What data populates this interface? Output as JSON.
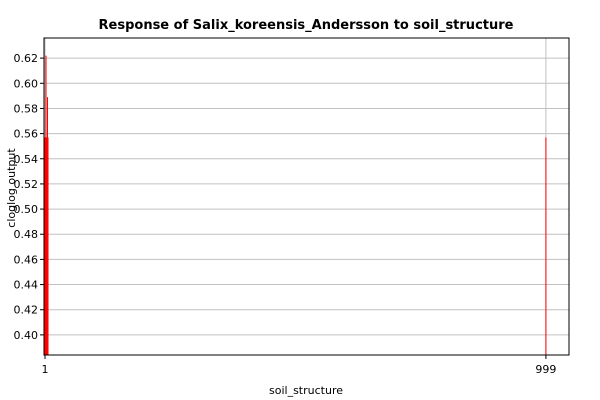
{
  "chart_data": {
    "type": "bar",
    "title": "Response of Salix_koreensis_Andersson to soil_structure",
    "xlabel": "soil_structure",
    "ylabel": "cloglog output",
    "xlim": [
      -1,
      1045
    ],
    "ylim": [
      0.384,
      0.636
    ],
    "yticks": [
      0.4,
      0.42,
      0.44,
      0.46,
      0.48,
      0.5,
      0.52,
      0.54,
      0.56,
      0.58,
      0.6,
      0.62
    ],
    "xticks": [
      1,
      999
    ],
    "grid": true,
    "color": "#ff0000",
    "bars": [
      {
        "x": 0,
        "width": 2,
        "value": 0.557
      },
      {
        "x": 2,
        "width": 1,
        "value": 0.622
      },
      {
        "x": 3,
        "width": 2,
        "value": 0.557
      },
      {
        "x": 5,
        "width": 1,
        "value": 0.589
      },
      {
        "x": 6,
        "width": 2,
        "value": 0.557
      },
      {
        "x": 998,
        "width": 1,
        "value": 0.557
      }
    ]
  }
}
